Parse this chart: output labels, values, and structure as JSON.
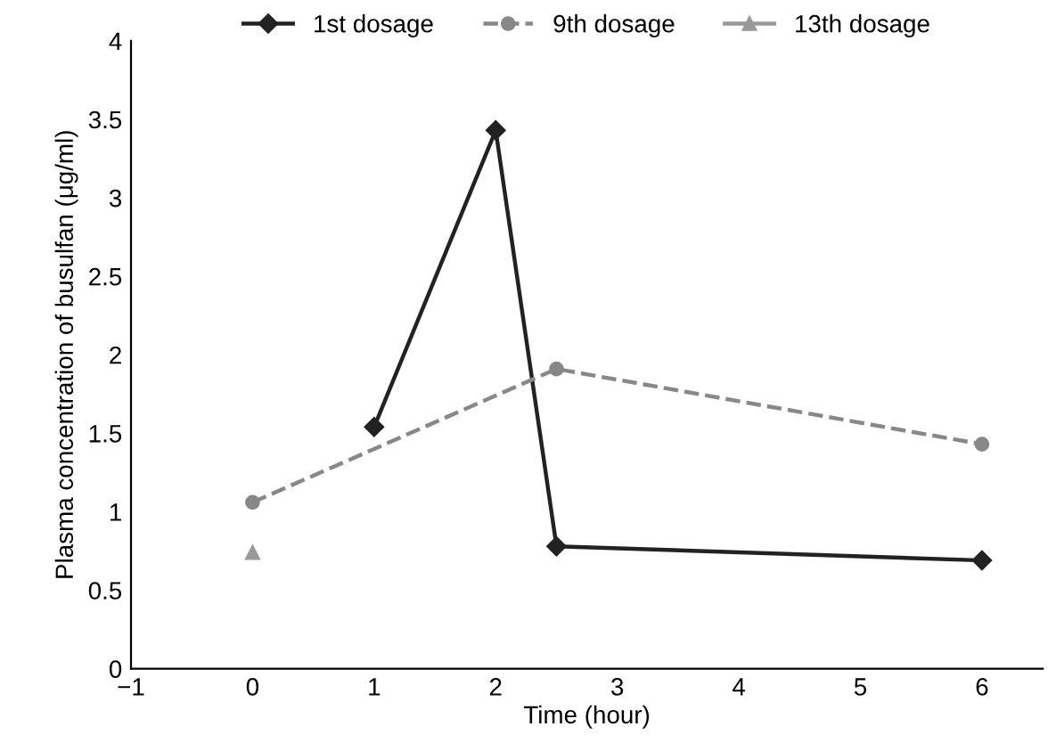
{
  "chart_data": {
    "type": "line",
    "xlabel": "Time (hour)",
    "ylabel": "Plasma concentration of busulfan (μg/ml)",
    "xlim": [
      -1,
      6.5
    ],
    "xticks": [
      {
        "value": -1,
        "label": "−1"
      },
      0,
      1,
      2,
      3,
      4,
      5,
      6
    ],
    "ylim": [
      0,
      4
    ],
    "yticks": [
      0,
      0.5,
      1,
      1.5,
      2,
      2.5,
      3,
      3.5,
      4
    ],
    "grid": false,
    "legend": "top",
    "series": [
      {
        "name": "1st dosage",
        "color": "#222222",
        "x": [
          1,
          2,
          2.5,
          6
        ],
        "values": [
          1.54,
          3.43,
          0.78,
          0.69
        ],
        "marker": "diamond",
        "line_style": "solid"
      },
      {
        "name": "9th dosage",
        "color": "#888888",
        "x": [
          0,
          2.5,
          6
        ],
        "values": [
          1.06,
          1.91,
          1.43
        ],
        "marker": "circle",
        "line_style": "dashed"
      },
      {
        "name": "13th dosage",
        "color": "#999999",
        "x": [
          0
        ],
        "values": [
          0.74
        ],
        "marker": "triangle",
        "line_style": "solid"
      }
    ]
  }
}
